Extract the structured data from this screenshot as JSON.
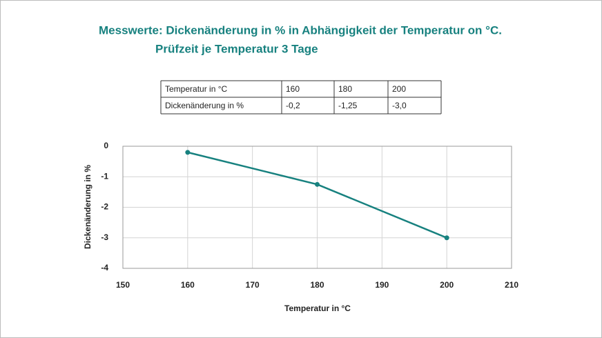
{
  "chart_data": {
    "type": "line",
    "title": "Messwerte: Dickenänderung in % in Abhängigkeit der Temperatur on °C.",
    "subtitle": "Prüfzeit je Temperatur 3 Tage",
    "x_label": "Temperatur in °C",
    "y_label": "Dickenänderung in %",
    "x": [
      160,
      180,
      200
    ],
    "series": [
      {
        "color": "#17817f",
        "values": [
          -0.2,
          -1.25,
          -3.0
        ]
      }
    ],
    "xlim": [
      150,
      210
    ],
    "xticks": [
      150,
      160,
      170,
      180,
      190,
      200,
      210
    ],
    "ylim": [
      -4,
      0
    ],
    "yticks": [
      -4,
      -3,
      -2,
      -1,
      0
    ],
    "grid": true
  },
  "table": {
    "rows": [
      [
        "Temperatur in °C",
        "160",
        "180",
        "200"
      ],
      [
        "Dickenänderung in %",
        "-0,2",
        "-1,25",
        "-3,0"
      ]
    ]
  }
}
